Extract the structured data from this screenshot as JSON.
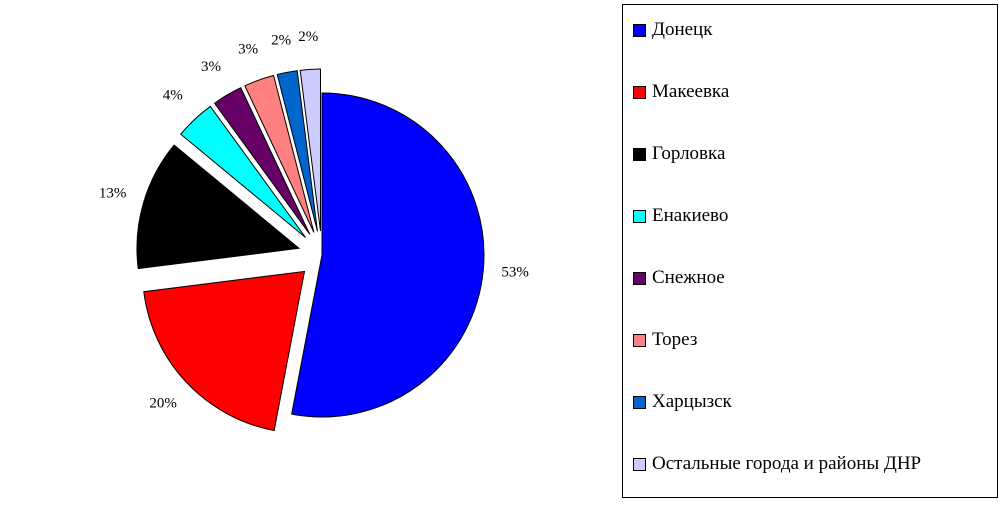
{
  "chart_data": {
    "type": "pie",
    "categories": [
      "Донецк",
      "Макеевка",
      "Горловка",
      "Енакиево",
      "Снежное",
      "Торез",
      "Харцызск",
      "Остальные города и районы ДНР"
    ],
    "values": [
      53,
      20,
      13,
      4,
      3,
      3,
      2,
      2
    ],
    "value_labels": [
      "53%",
      "20%",
      "13%",
      "4%",
      "3%",
      "3%",
      "2%",
      "2%"
    ],
    "colors": [
      "#0000ff",
      "#ff0000",
      "#000000",
      "#00ffff",
      "#660066",
      "#ff8080",
      "#0066cc",
      "#ccccff"
    ],
    "legend": "right"
  }
}
